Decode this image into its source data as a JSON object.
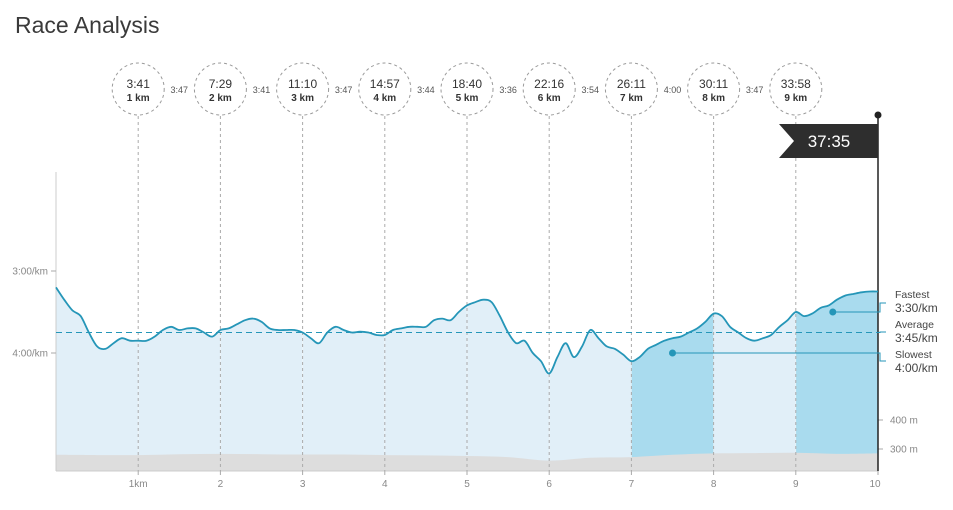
{
  "title": "Race Analysis",
  "colors": {
    "line": "#2596b8",
    "area_light": "#e1eff8",
    "area_dark": "#a9dbee",
    "elevation": "#dddddd",
    "flag": "#2e2e2e",
    "axis_text": "#888888"
  },
  "finish_time": "37:35",
  "chart_data": {
    "type": "line",
    "title": "",
    "x_unit": "km",
    "x_ticks": [
      "1km",
      "2",
      "3",
      "4",
      "5",
      "6",
      "7",
      "8",
      "9",
      "10"
    ],
    "y_ticks": [
      "3:00/km",
      "4:00/km"
    ],
    "elevation_ticks": [
      "400 m",
      "300 m"
    ],
    "xlim": [
      0,
      10
    ],
    "y_inverted": true,
    "y_unit": "min per km",
    "pace_series": {
      "name": "Pace",
      "x": [
        0,
        0.1,
        0.2,
        0.3,
        0.4,
        0.5,
        0.6,
        0.7,
        0.8,
        0.9,
        1.0,
        1.1,
        1.2,
        1.3,
        1.4,
        1.5,
        1.6,
        1.7,
        1.8,
        1.9,
        2.0,
        2.1,
        2.2,
        2.3,
        2.4,
        2.5,
        2.6,
        2.7,
        2.8,
        2.9,
        3.0,
        3.1,
        3.2,
        3.3,
        3.4,
        3.5,
        3.6,
        3.7,
        3.8,
        3.9,
        4.0,
        4.1,
        4.2,
        4.3,
        4.4,
        4.5,
        4.6,
        4.7,
        4.8,
        4.9,
        5.0,
        5.1,
        5.2,
        5.3,
        5.4,
        5.5,
        5.6,
        5.7,
        5.8,
        5.9,
        6.0,
        6.1,
        6.2,
        6.3,
        6.4,
        6.5,
        6.6,
        6.7,
        6.8,
        6.9,
        7.0,
        7.1,
        7.2,
        7.3,
        7.4,
        7.5,
        7.6,
        7.7,
        7.8,
        7.9,
        8.0,
        8.1,
        8.2,
        8.3,
        8.4,
        8.5,
        8.6,
        8.7,
        8.8,
        8.9,
        9.0,
        9.1,
        9.2,
        9.3,
        9.4,
        9.5,
        9.6,
        9.7,
        9.8,
        9.9,
        10.0
      ],
      "y": [
        3.2,
        3.35,
        3.48,
        3.55,
        3.75,
        3.92,
        3.95,
        3.88,
        3.82,
        3.85,
        3.85,
        3.85,
        3.8,
        3.72,
        3.68,
        3.72,
        3.7,
        3.7,
        3.75,
        3.8,
        3.72,
        3.7,
        3.65,
        3.6,
        3.58,
        3.62,
        3.7,
        3.72,
        3.72,
        3.72,
        3.75,
        3.82,
        3.88,
        3.75,
        3.68,
        3.72,
        3.75,
        3.74,
        3.75,
        3.78,
        3.78,
        3.72,
        3.7,
        3.68,
        3.68,
        3.68,
        3.6,
        3.58,
        3.6,
        3.5,
        3.42,
        3.38,
        3.35,
        3.38,
        3.55,
        3.75,
        3.88,
        3.85,
        4.0,
        4.1,
        4.25,
        4.05,
        3.88,
        4.05,
        3.92,
        3.72,
        3.82,
        3.92,
        3.95,
        4.02,
        4.1,
        4.05,
        3.95,
        3.9,
        3.85,
        3.82,
        3.8,
        3.75,
        3.7,
        3.62,
        3.52,
        3.55,
        3.68,
        3.75,
        3.82,
        3.85,
        3.82,
        3.78,
        3.68,
        3.6,
        3.5,
        3.55,
        3.52,
        3.45,
        3.42,
        3.35,
        3.3,
        3.28,
        3.26,
        3.25,
        3.25
      ]
    },
    "reference_lines": {
      "average": {
        "label": "Average",
        "value_text": "3:45/km",
        "value": 3.75
      },
      "fastest": {
        "label": "Fastest",
        "value_text": "3:30/km",
        "value": 3.5,
        "x": 9.45
      },
      "slowest": {
        "label": "Slowest",
        "value_text": "4:00/km",
        "value": 4.0,
        "x": 7.5
      }
    },
    "highlighted_km": [
      [
        7,
        8
      ],
      [
        9,
        10
      ]
    ],
    "elevation_series": {
      "name": "Elevation",
      "x": [
        0,
        0.5,
        1,
        1.5,
        2,
        2.5,
        3,
        3.5,
        4,
        4.5,
        5,
        5.5,
        6,
        6.5,
        7,
        7.5,
        8,
        8.5,
        9,
        9.5,
        10
      ],
      "y": [
        280,
        279,
        279,
        282,
        283,
        282,
        281,
        281,
        279,
        278,
        276,
        272,
        260,
        270,
        272,
        280,
        285,
        286,
        287,
        283,
        285
      ]
    },
    "splits": [
      {
        "time": "3:41",
        "dist": "1 km",
        "km": 1,
        "pace_next": "3:47"
      },
      {
        "time": "7:29",
        "dist": "2 km",
        "km": 2,
        "pace_next": "3:41"
      },
      {
        "time": "11:10",
        "dist": "3 km",
        "km": 3,
        "pace_next": "3:47"
      },
      {
        "time": "14:57",
        "dist": "4 km",
        "km": 4,
        "pace_next": "3:44"
      },
      {
        "time": "18:40",
        "dist": "5 km",
        "km": 5,
        "pace_next": "3:36"
      },
      {
        "time": "22:16",
        "dist": "6 km",
        "km": 6,
        "pace_next": "3:54"
      },
      {
        "time": "26:11",
        "dist": "7 km",
        "km": 7,
        "pace_next": "4:00"
      },
      {
        "time": "30:11",
        "dist": "8 km",
        "km": 8,
        "pace_next": "3:47"
      },
      {
        "time": "33:58",
        "dist": "9 km",
        "km": 9,
        "pace_next": ""
      }
    ]
  }
}
